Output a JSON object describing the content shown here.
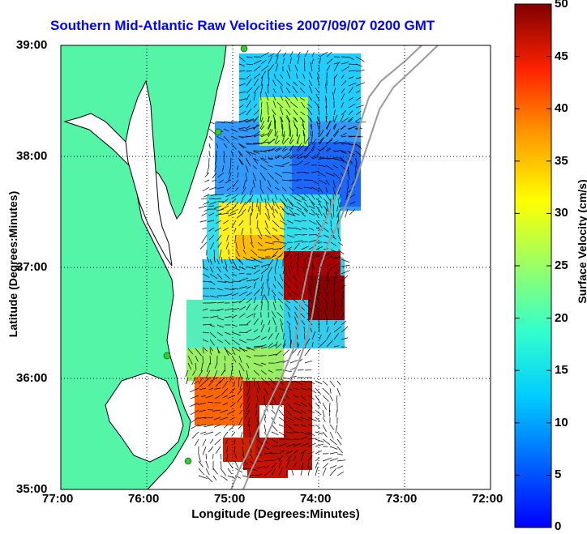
{
  "title": "Southern Mid-Atlantic Raw Velocities 2007/09/07 0200 GMT",
  "xlabel": "Longitude (Degrees:Minutes)",
  "ylabel": "Latitude (Degrees:Minutes)",
  "colorbar_label": "Surface Velocity (cm/s)",
  "x_ticks": [
    "77:00",
    "76:00",
    "75:00",
    "74:00",
    "73:00",
    "72:00"
  ],
  "y_ticks": [
    "39:00",
    "38:00",
    "37:00",
    "36:00",
    "35:00"
  ],
  "colorbar_ticks": [
    "50",
    "45",
    "40",
    "35",
    "30",
    "25",
    "20",
    "15",
    "10",
    "5",
    "0"
  ],
  "colors": {
    "land": "#55f5a8",
    "coastline": "#000000",
    "title": "#0000ff",
    "grid": "#000000",
    "bathymetry": "#9a9a9a",
    "station_marker": "#33cc33"
  },
  "map": {
    "lon_range": [
      -77,
      -72
    ],
    "lat_range": [
      35,
      39
    ],
    "grid": "dotted",
    "colormap": "jet",
    "velocity_range_cm_s": [
      0,
      50
    ]
  }
}
